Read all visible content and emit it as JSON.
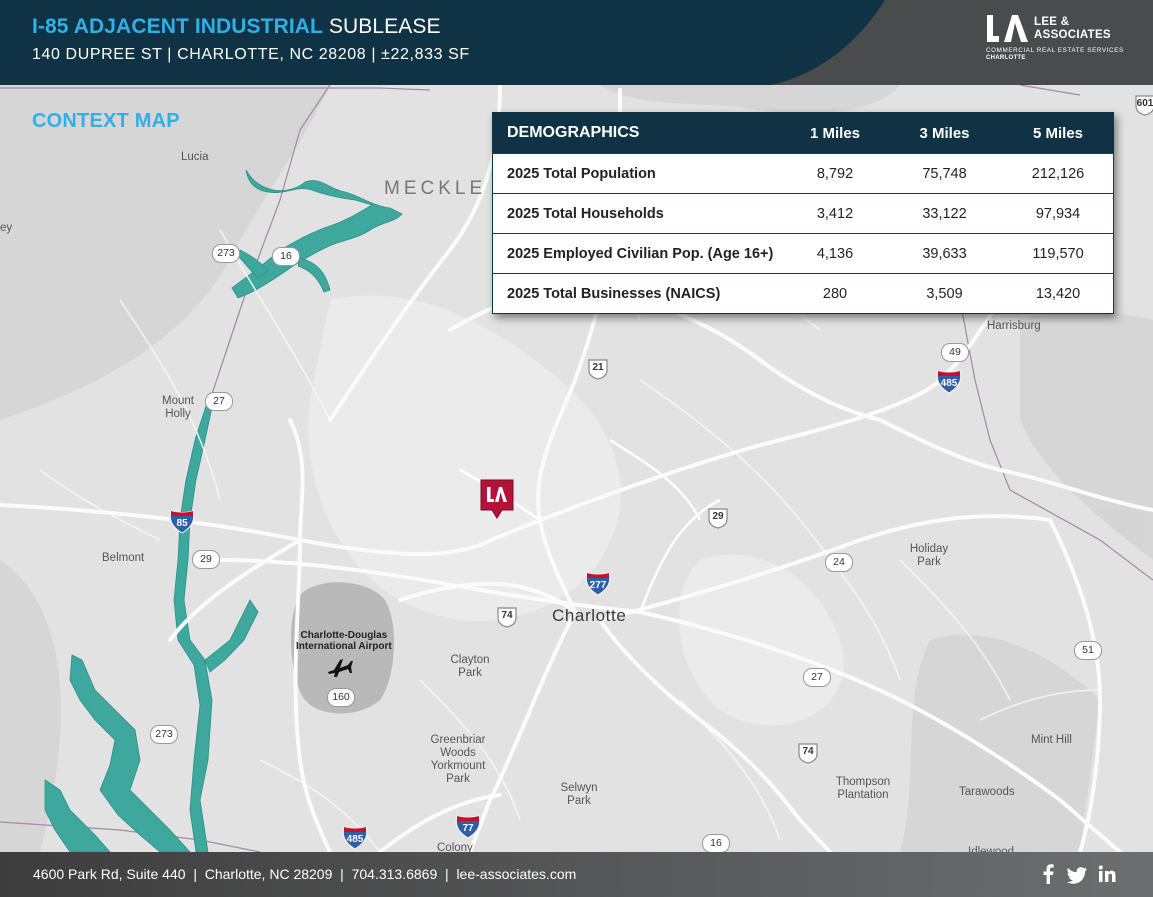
{
  "header": {
    "title_accent": "I-85 ADJACENT INDUSTRIAL",
    "title_rest": " SUBLEASE",
    "subtitle": "140 DUPREE ST | CHARLOTTE, NC 28208 | ±22,833 SF"
  },
  "logo": {
    "name_line1": "LEE &",
    "name_line2": "ASSOCIATES",
    "tagline": "COMMERCIAL REAL ESTATE SERVICES",
    "city": "CHARLOTTE"
  },
  "map": {
    "section_title": "CONTEXT MAP",
    "county": "MECKLE",
    "city": "Charlotte",
    "airport_line1": "Charlotte-Douglas",
    "airport_line2": "International Airport",
    "places": [
      {
        "name": "Lucia"
      },
      {
        "name": "Mount Holly"
      },
      {
        "name": "Belmont"
      },
      {
        "name": "Harrisburg"
      },
      {
        "name": "Holiday Park"
      },
      {
        "name": "Clayton Park"
      },
      {
        "name": "Greenbriar Woods Yorkmount Park"
      },
      {
        "name": "Selwyn Park"
      },
      {
        "name": "Thompson Plantation"
      },
      {
        "name": "Tarawoods"
      },
      {
        "name": "Mint Hill"
      },
      {
        "name": "Colony"
      },
      {
        "name": "Idlewood"
      },
      {
        "name": "ey"
      }
    ],
    "state_routes": [
      "273",
      "16",
      "27",
      "29",
      "160",
      "273",
      "24",
      "27",
      "51",
      "16",
      "49"
    ],
    "us_routes": [
      "21",
      "29",
      "74",
      "74",
      "601"
    ],
    "interstates": [
      "85",
      "485",
      "277",
      "77",
      "485"
    ]
  },
  "demographics": {
    "header": "DEMOGRAPHICS",
    "columns": [
      "1 Miles",
      "3 Miles",
      "5 Miles"
    ],
    "rows": [
      {
        "label": "2025 Total Population",
        "values": [
          "8,792",
          "75,748",
          "212,126"
        ]
      },
      {
        "label": "2025 Total Households",
        "values": [
          "3,412",
          "33,122",
          "97,934"
        ]
      },
      {
        "label": "2025 Employed Civilian Pop. (Age 16+)",
        "values": [
          "4,136",
          "39,633",
          "119,570"
        ]
      },
      {
        "label": "2025 Total Businesses (NAICS)",
        "values": [
          "280",
          "3,509",
          "13,420"
        ]
      }
    ]
  },
  "footer": {
    "address": "4600 Park Rd, Suite 440",
    "city": "Charlotte, NC 28209",
    "phone": "704.313.6869",
    "website": "lee-associates.com"
  },
  "colors": {
    "navy": "#0f3345",
    "accent": "#2fb0e6",
    "water": "#3fa89e",
    "pin": "#b5123a"
  },
  "icons": [
    "facebook-icon",
    "twitter-icon",
    "linkedin-icon",
    "airplane-icon",
    "property-pin-icon"
  ]
}
